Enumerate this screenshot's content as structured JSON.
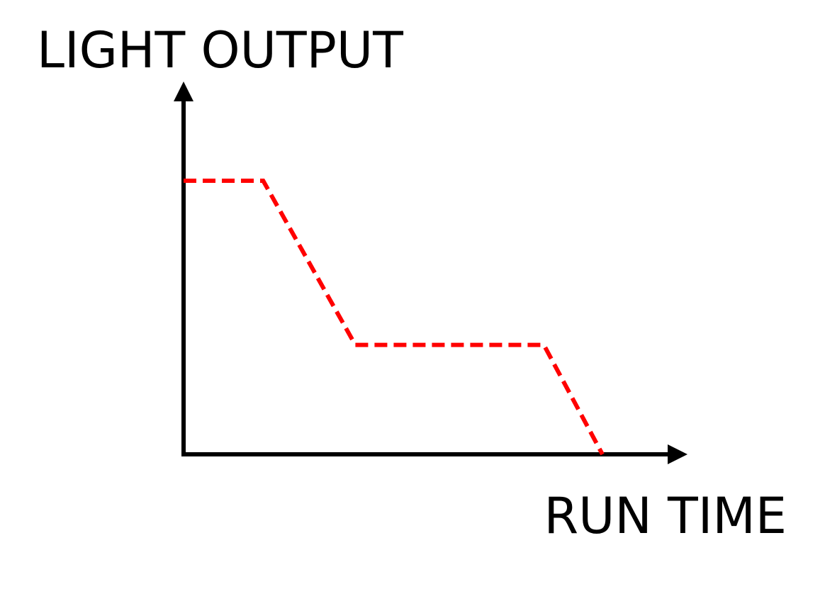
{
  "chart_data": {
    "type": "line",
    "title": "",
    "xlabel": "RUN TIME",
    "ylabel": "LIGHT OUTPUT",
    "xlim": [
      0,
      100
    ],
    "ylim": [
      0,
      100
    ],
    "grid": false,
    "legend": "none",
    "series": [
      {
        "line_style": "dashed",
        "color": "#ff0000",
        "points": [
          {
            "x": 0,
            "y": 100
          },
          {
            "x": 19,
            "y": 100
          },
          {
            "x": 41,
            "y": 40
          },
          {
            "x": 86,
            "y": 40
          },
          {
            "x": 100,
            "y": 0
          }
        ]
      }
    ]
  },
  "colors": {
    "axis": "#000000",
    "series": "#ff0000",
    "background": "#ffffff"
  }
}
